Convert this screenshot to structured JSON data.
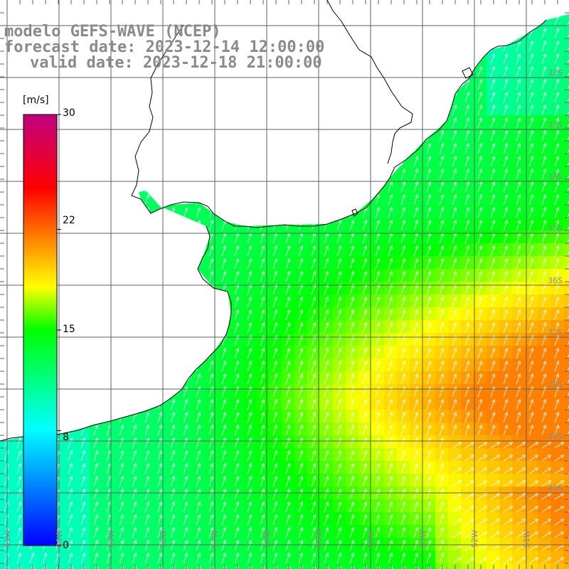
{
  "header": {
    "model": "modelo GEFS-WAVE (NCEP)",
    "forecast": "forecast date: 2023-12-14 12:00:00",
    "valid": "valid date: 2023-12-18 21:00:00"
  },
  "colorbar": {
    "unit": "[m/s]",
    "ticks": [
      "30",
      "22",
      "15",
      "8",
      "0"
    ],
    "tick_values": [
      30,
      22,
      15,
      8,
      0
    ],
    "range": [
      0,
      30
    ],
    "colors": [
      "#0000ff",
      "#00ffff",
      "#00ff00",
      "#ffff00",
      "#ff0000",
      "#c00080"
    ]
  },
  "map": {
    "lon_labels": [
      "61W",
      "60W",
      "59W",
      "58W",
      "57W",
      "56W",
      "55W",
      "54W",
      "53W",
      "52W",
      "51W"
    ],
    "lat_labels": [
      "32S",
      "33S",
      "34S",
      "35S",
      "36S",
      "37S",
      "38S",
      "39S",
      "40S"
    ],
    "wind_direction": "from south-southwest toward north-northeast",
    "wind_field": "Wind speed field roughly 8–20 m/s: green near the Uruguay and Brazil coasts, yellow to orange toward the southeast"
  }
}
